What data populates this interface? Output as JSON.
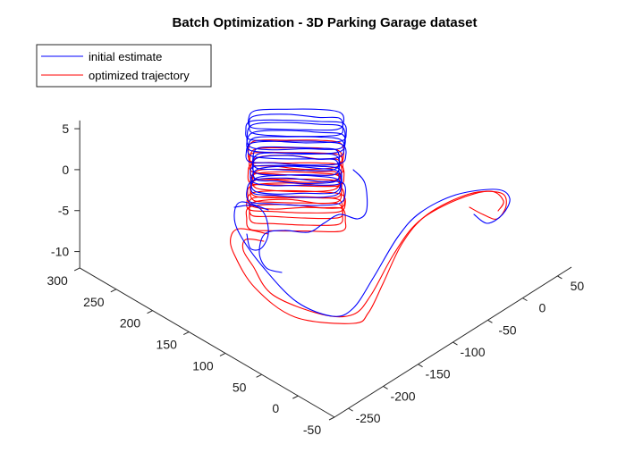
{
  "chart_data": {
    "type": "line",
    "view": "3d",
    "title": "Batch Optimization - 3D Parking Garage dataset",
    "legend": {
      "placement": "top-left",
      "entries": [
        {
          "name": "initial estimate",
          "color": "#0000ff"
        },
        {
          "name": "optimized trajectory",
          "color": "#ff0000"
        }
      ]
    },
    "axes": {
      "x": {
        "ticks": [
          -250,
          -200,
          -150,
          -100,
          -50,
          0,
          50
        ],
        "tick_labels": [
          "-250",
          "-200",
          "-150",
          "-100",
          "-50",
          "0",
          "50"
        ],
        "range": [
          -270,
          70
        ]
      },
      "y": {
        "ticks": [
          -50,
          0,
          50,
          100,
          150,
          200,
          250,
          300
        ],
        "tick_labels": [
          "-50",
          "0",
          "50",
          "100",
          "150",
          "200",
          "250",
          "300"
        ],
        "range": [
          -50,
          300
        ]
      },
      "z": {
        "ticks": [
          -10,
          -5,
          0,
          5
        ],
        "tick_labels": [
          "-10",
          "-5",
          "0",
          "5"
        ],
        "range": [
          -12,
          6
        ]
      }
    },
    "grid": false,
    "series": [
      {
        "name": "initial estimate",
        "color": "#0000ff"
      },
      {
        "name": "optimized trajectory",
        "color": "#ff0000"
      }
    ]
  }
}
